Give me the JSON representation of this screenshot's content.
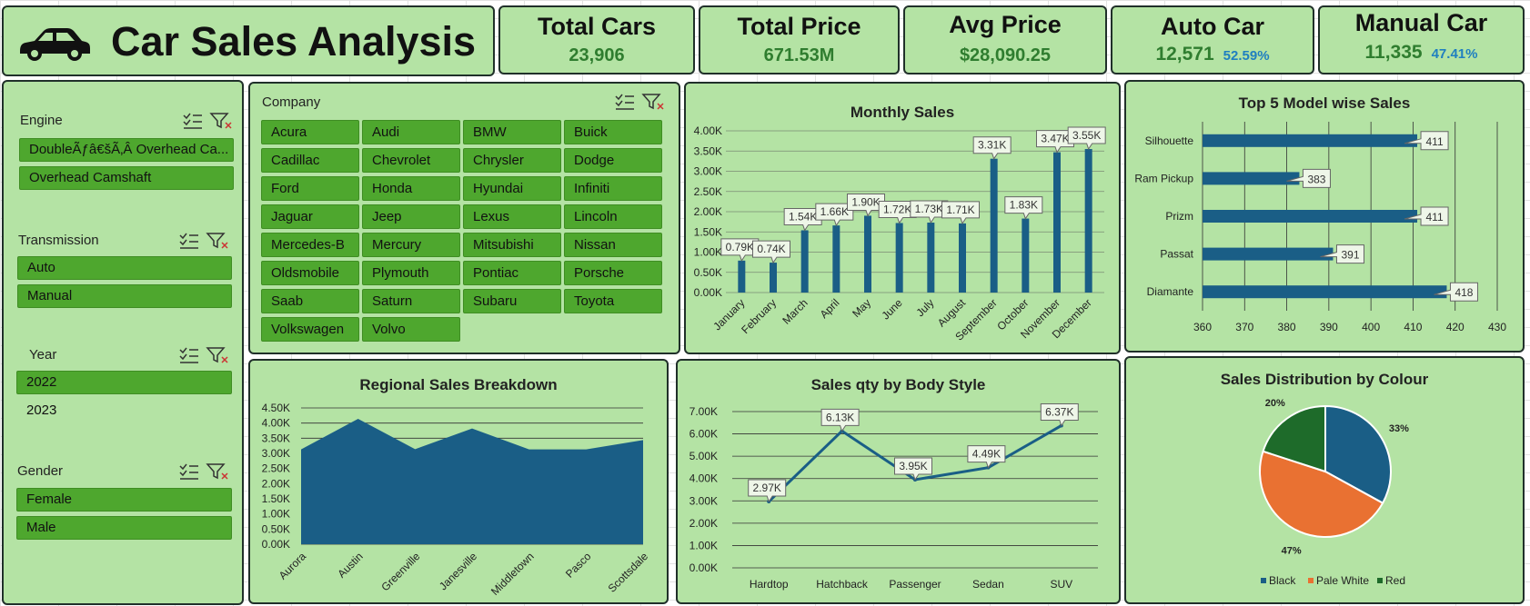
{
  "header": {
    "title": "Car Sales Analysis",
    "icon": "car-icon"
  },
  "kpis": {
    "total_cars": {
      "title": "Total Cars",
      "value": "23,906"
    },
    "total_price": {
      "title": "Total Price",
      "value": "671.53M"
    },
    "avg_price": {
      "title": "Avg Price",
      "value": "$28,090.25"
    },
    "auto_car": {
      "title": "Auto Car",
      "value": "12,571",
      "pct": "52.59%"
    },
    "manual_car": {
      "title": "Manual Car",
      "value": "11,335",
      "pct": "47.41%"
    }
  },
  "slicers": {
    "engine": {
      "title": "Engine",
      "items": [
        "DoubleÃƒâ€šÃ‚Â Overhead Ca...",
        "Overhead Camshaft"
      ]
    },
    "transmission": {
      "title": "Transmission",
      "items": [
        "Auto",
        "Manual"
      ]
    },
    "year": {
      "title": "Year",
      "items": [
        "2022",
        "2023"
      ]
    },
    "gender": {
      "title": "Gender",
      "items": [
        "Female",
        "Male"
      ]
    },
    "company": {
      "title": "Company",
      "items": [
        "Acura",
        "Audi",
        "BMW",
        "Buick",
        "Cadillac",
        "Chevrolet",
        "Chrysler",
        "Dodge",
        "Ford",
        "Honda",
        "Hyundai",
        "Infiniti",
        "Jaguar",
        "Jeep",
        "Lexus",
        "Lincoln",
        "Mercedes-B",
        "Mercury",
        "Mitsubishi",
        "Nissan",
        "Oldsmobile",
        "Plymouth",
        "Pontiac",
        "Porsche",
        "Saab",
        "Saturn",
        "Subaru",
        "Toyota",
        "Volkswagen",
        "Volvo"
      ]
    }
  },
  "colors": {
    "panel_bg": "#b4e3a4",
    "bar": "#1a5e86",
    "chip": "#4ea72e",
    "kpi_value": "#2f7d2f",
    "kpi_pct": "#1f7fc0",
    "pie_black": "#1a5e86",
    "pie_pale_white": "#e97132",
    "pie_red": "#1e6b2a"
  },
  "chart_data": [
    {
      "id": "monthly",
      "type": "bar",
      "title": "Monthly Sales",
      "categories": [
        "January",
        "February",
        "March",
        "April",
        "May",
        "June",
        "July",
        "August",
        "September",
        "October",
        "November",
        "December"
      ],
      "values": [
        790,
        740,
        1540,
        1660,
        1900,
        1720,
        1730,
        1710,
        3310,
        1830,
        3470,
        3550
      ],
      "data_labels": [
        "0.79K",
        "0.74K",
        "1.54K",
        "1.66K",
        "1.90K",
        "1.72K",
        "1.73K",
        "1.71K",
        "3.31K",
        "1.83K",
        "3.47K",
        "3.55K"
      ],
      "ylim": [
        0,
        4000
      ],
      "yticks": [
        "0.00K",
        "0.50K",
        "1.00K",
        "1.50K",
        "2.00K",
        "2.50K",
        "3.00K",
        "3.50K",
        "4.00K"
      ]
    },
    {
      "id": "top5",
      "type": "bar",
      "orientation": "horizontal",
      "title": "Top 5 Model wise Sales",
      "categories": [
        "Silhouette",
        "Ram Pickup",
        "Prizm",
        "Passat",
        "Diamante"
      ],
      "values": [
        411,
        383,
        411,
        391,
        418
      ],
      "xlim": [
        360,
        430
      ],
      "xticks": [
        "360",
        "370",
        "380",
        "390",
        "400",
        "410",
        "420",
        "430"
      ]
    },
    {
      "id": "regional",
      "type": "area",
      "title": "Regional Sales Breakdown",
      "categories": [
        "Aurora",
        "Austin",
        "Greenville",
        "Janesville",
        "Middletown",
        "Pasco",
        "Scottsdale"
      ],
      "values": [
        3130,
        4140,
        3140,
        3820,
        3130,
        3130,
        3440
      ],
      "ylim": [
        0,
        4500
      ],
      "yticks": [
        "0.00K",
        "0.50K",
        "1.00K",
        "1.50K",
        "2.00K",
        "2.50K",
        "3.00K",
        "3.50K",
        "4.00K",
        "4.50K"
      ]
    },
    {
      "id": "bodystyle",
      "type": "line",
      "title": "Sales qty by Body Style",
      "categories": [
        "Hardtop",
        "Hatchback",
        "Passenger",
        "Sedan",
        "SUV"
      ],
      "values": [
        2970,
        6130,
        3950,
        4490,
        6370
      ],
      "data_labels": [
        "2.97K",
        "6.13K",
        "3.95K",
        "4.49K",
        "6.37K"
      ],
      "ylim": [
        0,
        7000
      ],
      "yticks": [
        "0.00K",
        "1.00K",
        "2.00K",
        "3.00K",
        "4.00K",
        "5.00K",
        "6.00K",
        "7.00K"
      ]
    },
    {
      "id": "colour",
      "type": "pie",
      "title": "Sales Distribution by Colour",
      "categories": [
        "Black",
        "Pale White",
        "Red"
      ],
      "values": [
        33,
        47,
        20
      ],
      "data_labels": [
        "33%",
        "47%",
        "20%"
      ],
      "legend": "bottom"
    }
  ]
}
